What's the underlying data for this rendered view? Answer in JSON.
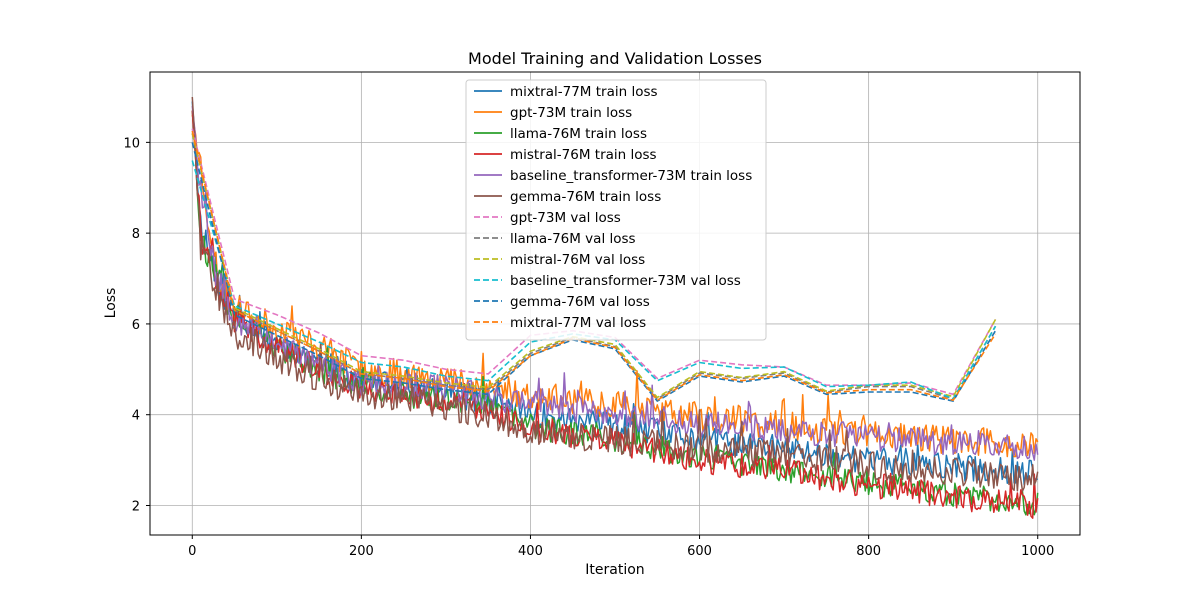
{
  "chart_data": {
    "type": "line",
    "title": "Model Training and Validation Losses",
    "xlabel": "Iteration",
    "ylabel": "Loss",
    "xlim": [
      -50,
      1050
    ],
    "ylim": [
      1.35,
      11.55
    ],
    "xticks": [
      0,
      200,
      400,
      600,
      800,
      1000
    ],
    "yticks": [
      2,
      4,
      6,
      8,
      10
    ],
    "grid": true,
    "legend_position": "top-center",
    "val_x": [
      0,
      50,
      100,
      150,
      200,
      250,
      300,
      350,
      400,
      450,
      500,
      550,
      600,
      650,
      700,
      750,
      800,
      850,
      900,
      950
    ],
    "series": [
      {
        "name": "mixtral-77M train loss",
        "kind": "train",
        "color": "#1f77b4",
        "dash": "solid",
        "anchors": [
          [
            0,
            10.9
          ],
          [
            10,
            8.2
          ],
          [
            30,
            7.0
          ],
          [
            50,
            6.2
          ],
          [
            100,
            5.6
          ],
          [
            150,
            5.2
          ],
          [
            200,
            4.7
          ],
          [
            300,
            4.5
          ],
          [
            350,
            4.3
          ],
          [
            400,
            4.0
          ],
          [
            500,
            3.75
          ],
          [
            600,
            3.45
          ],
          [
            700,
            3.25
          ],
          [
            800,
            3.0
          ],
          [
            900,
            2.85
          ],
          [
            1000,
            2.7
          ]
        ],
        "amp": 0.3,
        "seed": 11
      },
      {
        "name": "gpt-73M train loss",
        "kind": "train",
        "color": "#ff7f0e",
        "dash": "solid",
        "anchors": [
          [
            0,
            10.6
          ],
          [
            10,
            9.5
          ],
          [
            30,
            7.0
          ],
          [
            50,
            6.3
          ],
          [
            100,
            5.9
          ],
          [
            150,
            5.5
          ],
          [
            200,
            5.0
          ],
          [
            300,
            4.8
          ],
          [
            350,
            4.6
          ],
          [
            400,
            4.4
          ],
          [
            500,
            4.25
          ],
          [
            600,
            3.95
          ],
          [
            700,
            3.75
          ],
          [
            800,
            3.6
          ],
          [
            900,
            3.45
          ],
          [
            1000,
            3.3
          ]
        ],
        "amp": 0.32,
        "seed": 23
      },
      {
        "name": "llama-76M train loss",
        "kind": "train",
        "color": "#2ca02c",
        "dash": "solid",
        "anchors": [
          [
            0,
            10.7
          ],
          [
            10,
            8.0
          ],
          [
            30,
            6.9
          ],
          [
            50,
            6.1
          ],
          [
            100,
            5.5
          ],
          [
            150,
            5.0
          ],
          [
            200,
            4.6
          ],
          [
            300,
            4.3
          ],
          [
            350,
            4.2
          ],
          [
            400,
            3.75
          ],
          [
            500,
            3.45
          ],
          [
            600,
            3.05
          ],
          [
            700,
            2.8
          ],
          [
            800,
            2.5
          ],
          [
            900,
            2.25
          ],
          [
            1000,
            2.0
          ]
        ],
        "amp": 0.28,
        "seed": 37
      },
      {
        "name": "mistral-76M train loss",
        "kind": "train",
        "color": "#d62728",
        "dash": "solid",
        "anchors": [
          [
            0,
            10.7
          ],
          [
            10,
            8.0
          ],
          [
            30,
            6.9
          ],
          [
            50,
            6.1
          ],
          [
            100,
            5.5
          ],
          [
            150,
            5.0
          ],
          [
            200,
            4.6
          ],
          [
            300,
            4.3
          ],
          [
            350,
            4.15
          ],
          [
            400,
            3.7
          ],
          [
            500,
            3.4
          ],
          [
            600,
            3.0
          ],
          [
            700,
            2.75
          ],
          [
            800,
            2.45
          ],
          [
            900,
            2.2
          ],
          [
            1000,
            1.95
          ]
        ],
        "amp": 0.28,
        "seed": 41
      },
      {
        "name": "baseline_transformer-73M train loss",
        "kind": "train",
        "color": "#9467bd",
        "dash": "solid",
        "anchors": [
          [
            0,
            10.8
          ],
          [
            10,
            9.0
          ],
          [
            30,
            7.0
          ],
          [
            50,
            6.2
          ],
          [
            100,
            5.6
          ],
          [
            150,
            5.1
          ],
          [
            200,
            4.7
          ],
          [
            300,
            4.6
          ],
          [
            350,
            4.4
          ],
          [
            400,
            4.25
          ],
          [
            500,
            4.0
          ],
          [
            600,
            3.8
          ],
          [
            700,
            3.65
          ],
          [
            800,
            3.5
          ],
          [
            900,
            3.4
          ],
          [
            1000,
            3.25
          ]
        ],
        "amp": 0.3,
        "seed": 53
      },
      {
        "name": "gemma-76M train loss",
        "kind": "train",
        "color": "#8c564b",
        "dash": "solid",
        "anchors": [
          [
            0,
            11.0
          ],
          [
            10,
            7.8
          ],
          [
            30,
            6.8
          ],
          [
            50,
            5.9
          ],
          [
            100,
            5.2
          ],
          [
            150,
            4.8
          ],
          [
            200,
            4.45
          ],
          [
            300,
            4.2
          ],
          [
            350,
            4.0
          ],
          [
            400,
            3.65
          ],
          [
            500,
            3.45
          ],
          [
            600,
            3.25
          ],
          [
            700,
            3.1
          ],
          [
            800,
            2.9
          ],
          [
            900,
            2.75
          ],
          [
            1000,
            2.6
          ]
        ],
        "amp": 0.32,
        "seed": 67
      },
      {
        "name": "gpt-73M val loss",
        "kind": "val",
        "color": "#e377c2",
        "dash": "dashed",
        "values": [
          10.3,
          6.55,
          6.2,
          5.8,
          5.3,
          5.2,
          5.0,
          4.9,
          5.75,
          5.85,
          5.7,
          4.8,
          5.2,
          5.1,
          5.05,
          4.65,
          4.65,
          4.7,
          4.45,
          6.1
        ]
      },
      {
        "name": "llama-76M val loss",
        "kind": "val",
        "color": "#7f7f7f",
        "dash": "dashed",
        "values": [
          10.2,
          6.3,
          5.85,
          5.4,
          4.9,
          4.8,
          4.65,
          4.55,
          5.35,
          5.7,
          5.5,
          4.35,
          4.92,
          4.8,
          4.92,
          4.5,
          4.62,
          4.62,
          4.35,
          5.95
        ]
      },
      {
        "name": "mistral-76M val loss",
        "kind": "val",
        "color": "#bcbd22",
        "dash": "dashed",
        "values": [
          10.2,
          6.35,
          5.9,
          5.45,
          4.95,
          4.85,
          4.7,
          4.6,
          5.4,
          5.72,
          5.55,
          4.38,
          4.95,
          4.82,
          4.95,
          4.52,
          4.65,
          4.65,
          4.4,
          6.1
        ]
      },
      {
        "name": "baseline_transformer-73M val loss",
        "kind": "val",
        "color": "#17becf",
        "dash": "dashed",
        "values": [
          9.6,
          6.4,
          6.0,
          5.6,
          5.15,
          5.05,
          4.85,
          4.75,
          5.6,
          5.78,
          5.65,
          4.75,
          5.15,
          5.02,
          5.05,
          4.62,
          4.65,
          4.72,
          4.35,
          5.95
        ]
      },
      {
        "name": "gemma-76M val loss",
        "kind": "val",
        "color": "#1f77b4",
        "dash": "dashed",
        "values": [
          10.0,
          6.2,
          5.75,
          5.3,
          4.8,
          4.7,
          4.55,
          4.45,
          5.3,
          5.65,
          5.45,
          4.3,
          4.85,
          4.72,
          4.85,
          4.45,
          4.5,
          4.5,
          4.3,
          5.85
        ]
      },
      {
        "name": "mixtral-77M val loss",
        "kind": "val",
        "color": "#ff7f0e",
        "dash": "dashed",
        "values": [
          10.25,
          6.3,
          5.85,
          5.4,
          4.9,
          4.8,
          4.62,
          4.52,
          5.3,
          5.68,
          5.48,
          4.32,
          4.88,
          4.75,
          4.88,
          4.48,
          4.55,
          4.55,
          4.32,
          5.78
        ]
      }
    ]
  }
}
